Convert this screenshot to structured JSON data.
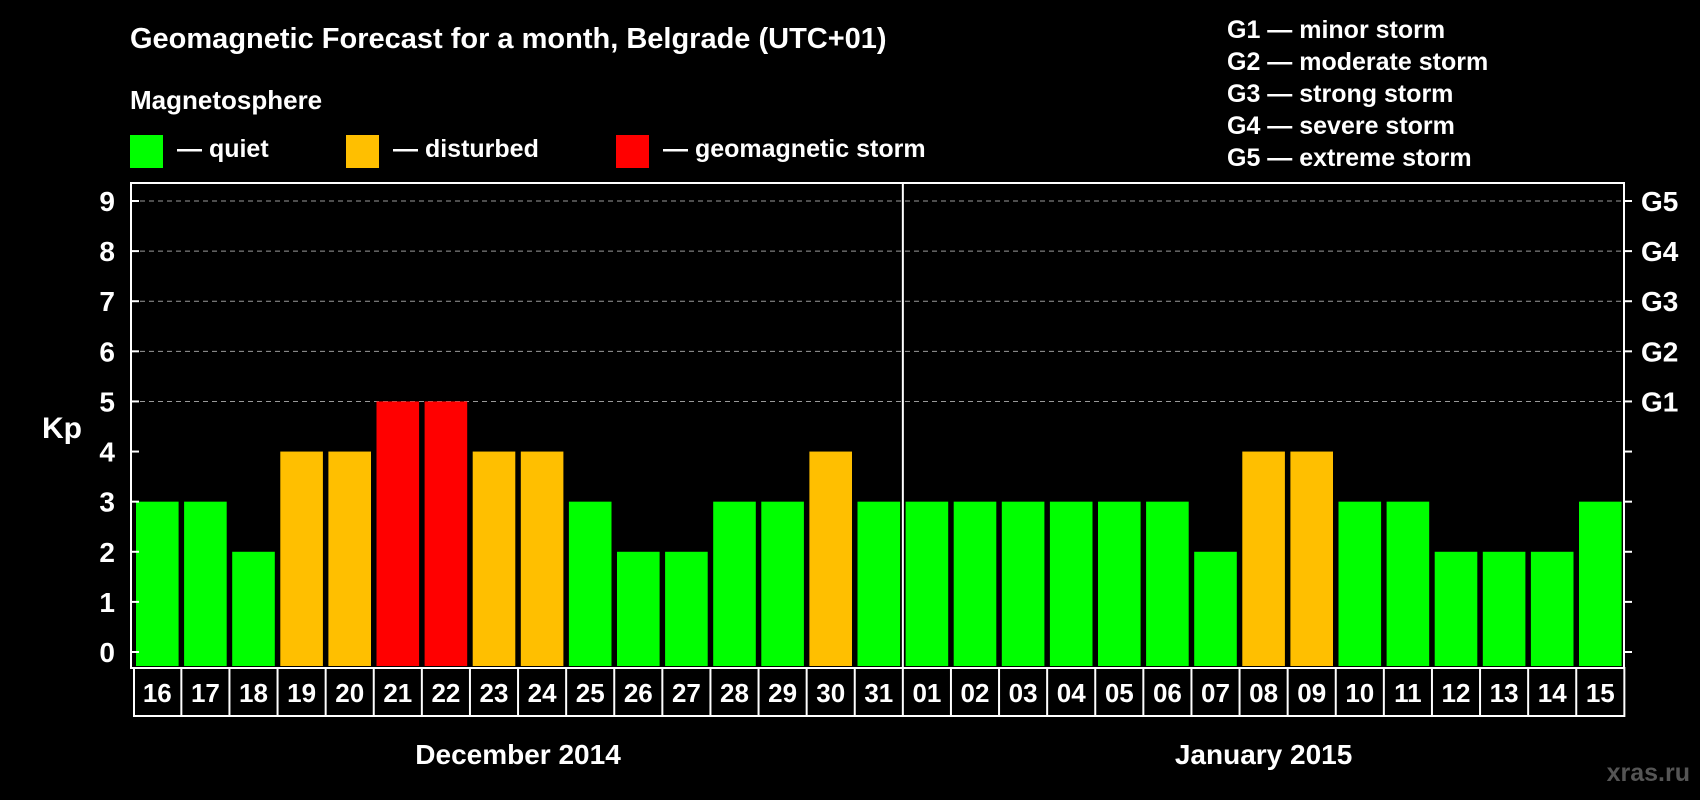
{
  "chart_data": {
    "type": "bar",
    "title": "Geomagnetic Forecast for a month, Belgrade (UTC+01)",
    "ylabel": "Kp",
    "ylim": [
      0,
      9
    ],
    "yticks": [
      "0",
      "1",
      "2",
      "3",
      "4",
      "5",
      "6",
      "7",
      "8",
      "9"
    ],
    "right_axis_labels": [
      {
        "value": 5,
        "label": "G1"
      },
      {
        "value": 6,
        "label": "G2"
      },
      {
        "value": 7,
        "label": "G3"
      },
      {
        "value": 8,
        "label": "G4"
      },
      {
        "value": 9,
        "label": "G5"
      }
    ],
    "grid": {
      "horizontal_dashed_from": 5
    },
    "categories": [
      "16",
      "17",
      "18",
      "19",
      "20",
      "21",
      "22",
      "23",
      "24",
      "25",
      "26",
      "27",
      "28",
      "29",
      "30",
      "31",
      "01",
      "02",
      "03",
      "04",
      "05",
      "06",
      "07",
      "08",
      "09",
      "10",
      "11",
      "12",
      "13",
      "14",
      "15"
    ],
    "values": [
      3,
      3,
      2,
      4,
      4,
      5,
      5,
      4,
      4,
      3,
      2,
      2,
      3,
      3,
      4,
      3,
      3,
      3,
      3,
      3,
      3,
      3,
      2,
      4,
      4,
      3,
      3,
      2,
      2,
      2,
      3
    ],
    "months": [
      {
        "label": "December 2014",
        "days": 16
      },
      {
        "label": "January 2015",
        "days": 15
      }
    ],
    "legend": {
      "heading": "Magnetosphere",
      "items": [
        {
          "label": "— quiet",
          "color": "#00ff00",
          "max_kp": 3
        },
        {
          "label": "— disturbed",
          "color": "#ffbf00",
          "max_kp": 4
        },
        {
          "label": "— geomagnetic storm",
          "color": "#ff0000",
          "max_kp": 9
        }
      ],
      "placement": "top-left"
    },
    "storm_scale": [
      "G1 — minor storm",
      "G2 — moderate storm",
      "G3 — strong storm",
      "G4 — severe storm",
      "G5 — extreme storm"
    ]
  },
  "watermark": "xras.ru",
  "colors": {
    "background": "#000000",
    "foreground": "#ffffff",
    "grid": "#9a9a9a"
  }
}
